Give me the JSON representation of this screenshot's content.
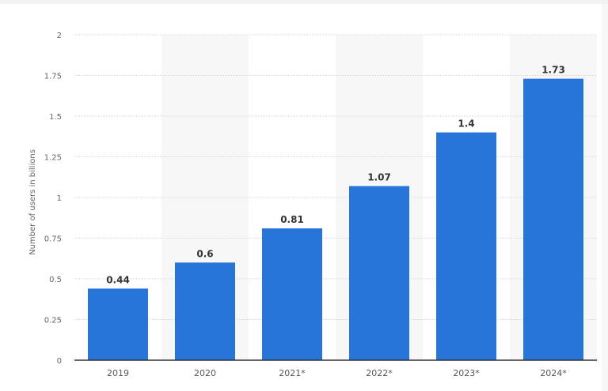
{
  "chart_data": {
    "type": "bar",
    "title": "",
    "xlabel": "",
    "ylabel": "Number of users in billions",
    "categories": [
      "2019",
      "2020",
      "2021*",
      "2022*",
      "2023*",
      "2024*"
    ],
    "values": [
      0.44,
      0.6,
      0.81,
      1.07,
      1.4,
      1.73
    ],
    "data_labels": [
      "0.44",
      "0.6",
      "0.81",
      "1.07",
      "1.4",
      "1.73"
    ],
    "ylim": [
      0,
      2
    ],
    "yticks": [
      0,
      0.25,
      0.5,
      0.75,
      1,
      1.25,
      1.5,
      1.75,
      2
    ],
    "ytick_labels": [
      "0",
      "0.25",
      "0.5",
      "0.75",
      "1",
      "1.25",
      "1.5",
      "1.75",
      "2"
    ],
    "grid": true,
    "legend": "none",
    "colors": {
      "bar": "#2775d9",
      "band": "#f7f7f7",
      "grid": "#d8d8d8",
      "axis": "#333333"
    }
  }
}
